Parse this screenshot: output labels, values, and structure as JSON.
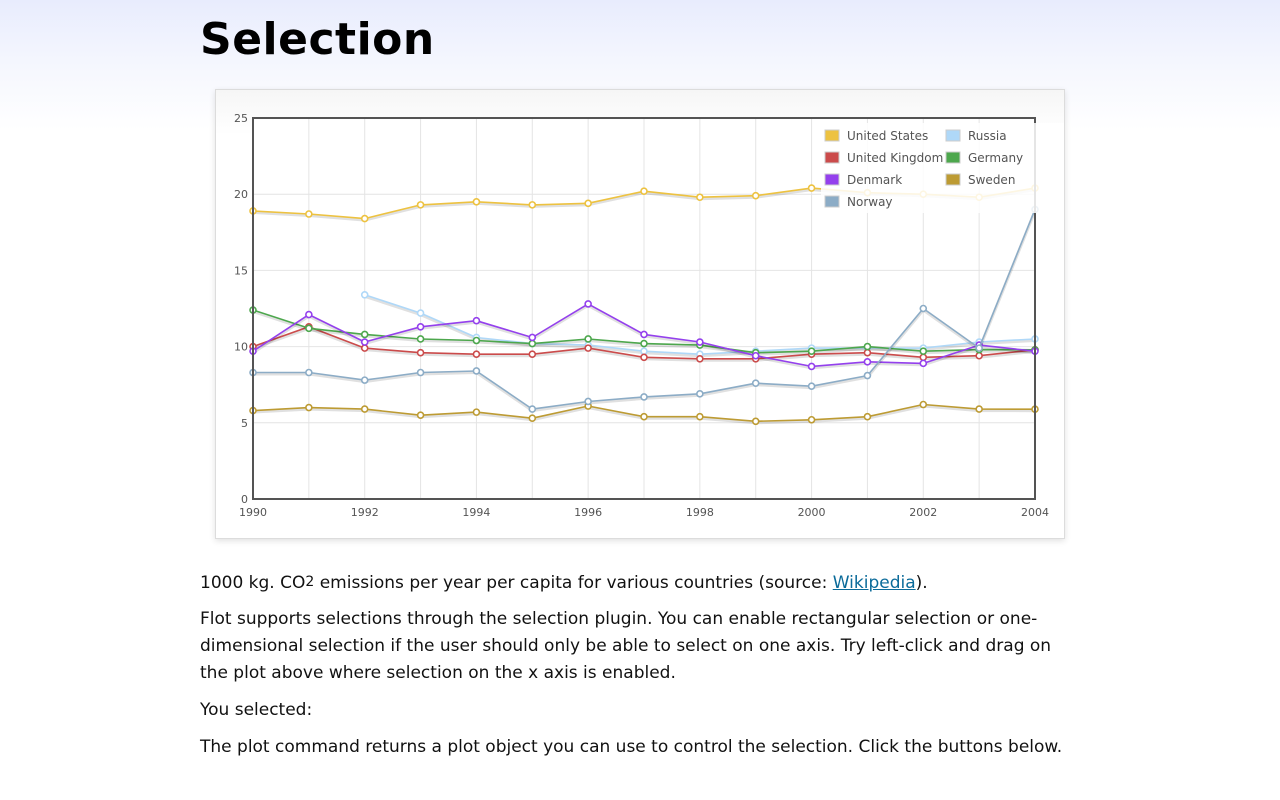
{
  "page": {
    "title": "Selection",
    "caption_pre": "1000 kg. CO",
    "caption_sup": "2",
    "caption_post": " emissions per year per capita for various countries (source: ",
    "caption_link": "Wikipedia",
    "caption_end": ").",
    "description": "Flot supports selections through the selection plugin. You can enable rectangular selection or one-dimensional selection if the user should only be able to select on one axis. Try left-click and drag on the plot above where selection on the x axis is enabled.",
    "selected_label": "You selected:",
    "command_text": "The plot command returns a plot object you can use to control the selection. Click the buttons below."
  },
  "chart_data": {
    "type": "line",
    "x": [
      1990,
      1991,
      1992,
      1993,
      1994,
      1995,
      1996,
      1997,
      1998,
      1999,
      2000,
      2001,
      2002,
      2003,
      2004
    ],
    "xlim": [
      1990,
      2004
    ],
    "ylim": [
      0,
      25
    ],
    "x_ticks": [
      1990,
      1992,
      1994,
      1996,
      1998,
      2000,
      2002,
      2004
    ],
    "y_ticks": [
      0,
      5,
      10,
      15,
      20,
      25
    ],
    "grid": true,
    "legend_position": "top-right",
    "legend_columns": 2,
    "series": [
      {
        "name": "United States",
        "color": "#edc240",
        "values": [
          18.9,
          18.7,
          18.4,
          19.3,
          19.5,
          19.3,
          19.4,
          20.2,
          19.8,
          19.9,
          20.4,
          20.1,
          20.0,
          19.8,
          20.4
        ]
      },
      {
        "name": "Russia",
        "color": "#afd8f8",
        "values": [
          null,
          null,
          13.4,
          12.2,
          10.6,
          10.2,
          10.1,
          9.7,
          9.5,
          9.7,
          9.9,
          9.9,
          9.9,
          10.3,
          10.5
        ]
      },
      {
        "name": "United Kingdom",
        "color": "#cb4b4b",
        "values": [
          10.0,
          11.3,
          9.9,
          9.6,
          9.5,
          9.5,
          9.9,
          9.3,
          9.2,
          9.2,
          9.5,
          9.6,
          9.3,
          9.4,
          9.79
        ]
      },
      {
        "name": "Germany",
        "color": "#4da74d",
        "values": [
          12.4,
          11.2,
          10.8,
          10.5,
          10.4,
          10.2,
          10.5,
          10.2,
          10.1,
          9.6,
          9.7,
          10.0,
          9.7,
          9.8,
          9.79
        ]
      },
      {
        "name": "Denmark",
        "color": "#9440ed",
        "values": [
          9.7,
          12.1,
          10.3,
          11.3,
          11.7,
          10.6,
          12.8,
          10.8,
          10.3,
          9.4,
          8.7,
          9.0,
          8.9,
          10.1,
          9.7
        ]
      },
      {
        "name": "Sweden",
        "color": "#bd9b33",
        "values": [
          5.8,
          6.0,
          5.9,
          5.5,
          5.7,
          5.3,
          6.1,
          5.4,
          5.4,
          5.1,
          5.2,
          5.4,
          6.2,
          5.9,
          5.89
        ]
      },
      {
        "name": "Norway",
        "color": "#8cacc6",
        "values": [
          8.3,
          8.3,
          7.8,
          8.3,
          8.4,
          5.9,
          6.4,
          6.7,
          6.9,
          7.6,
          7.4,
          8.1,
          12.5,
          9.9,
          19.0
        ]
      }
    ]
  }
}
